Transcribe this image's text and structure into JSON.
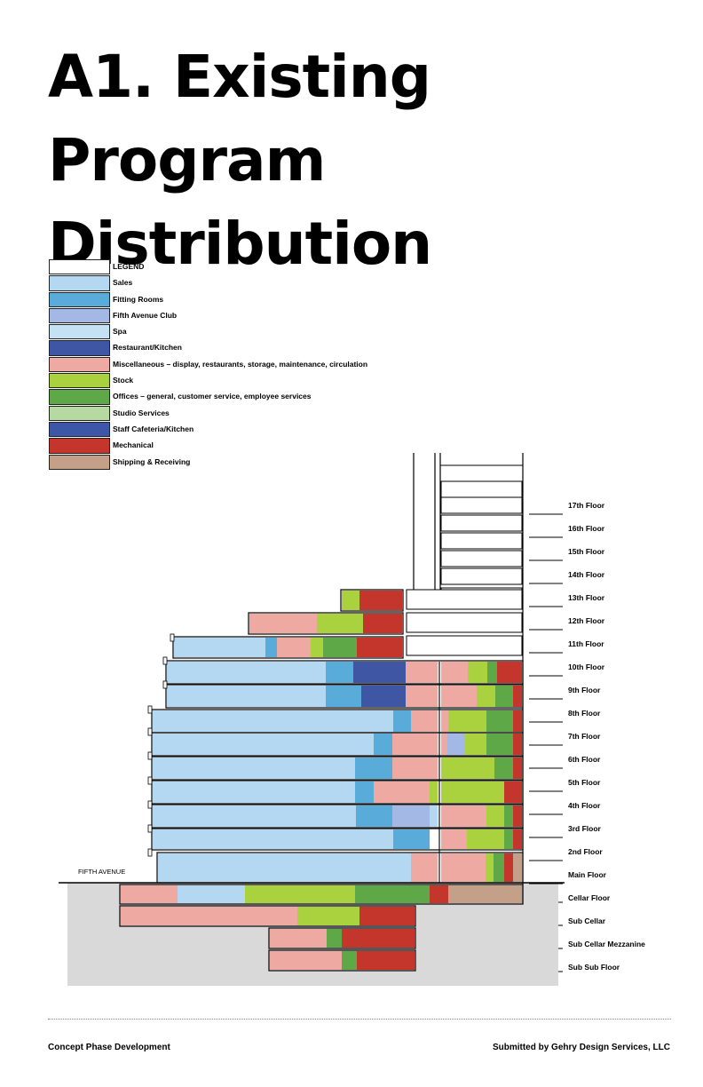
{
  "title": {
    "line1": "A1. Existing Program",
    "line2": "Distribution"
  },
  "legend": {
    "heading": "LEGEND",
    "items": [
      {
        "label": "Sales",
        "color": "#b4d8f2"
      },
      {
        "label": "Fitting Rooms",
        "color": "#59acd9"
      },
      {
        "label": "Fifth Avenue Club",
        "color": "#a4b8e6"
      },
      {
        "label": "Spa",
        "color": "#c5e2f4"
      },
      {
        "label": "Restaurant/Kitchen",
        "color": "#3f56a5"
      },
      {
        "label": "Miscellaneous – display, restaurants, storage, maintenance, circulation",
        "color": "#eeaaa2"
      },
      {
        "label": "Stock",
        "color": "#a9d23e"
      },
      {
        "label": "Offices – general, customer service, employee services",
        "color": "#5fa847"
      },
      {
        "label": "Studio Services",
        "color": "#b5d9a0"
      },
      {
        "label": "Staff Cafeteria/Kitchen",
        "color": "#3d56a8"
      },
      {
        "label": "Mechanical",
        "color": "#c4352c"
      },
      {
        "label": "Shipping & Receiving",
        "color": "#c4a089"
      }
    ]
  },
  "section": {
    "street_label": "FIFTH AVENUE",
    "floors": [
      "17th Floor",
      "16th Floor",
      "15th Floor",
      "14th Floor",
      "13th Floor",
      "12th Floor",
      "11th Floor",
      "10th Floor",
      "9th Floor",
      "8th Floor",
      "7th Floor",
      "6th Floor",
      "5th Floor",
      "4th Floor",
      "3rd Floor",
      "2nd Floor",
      "Main Floor",
      "Cellar Floor",
      "Sub Cellar",
      "Sub Cellar Mezzanine",
      "Sub Sub Floor"
    ]
  },
  "footer": {
    "left": "Concept Phase Development",
    "right": "Submitted by Gehry Design Services, LLC"
  }
}
